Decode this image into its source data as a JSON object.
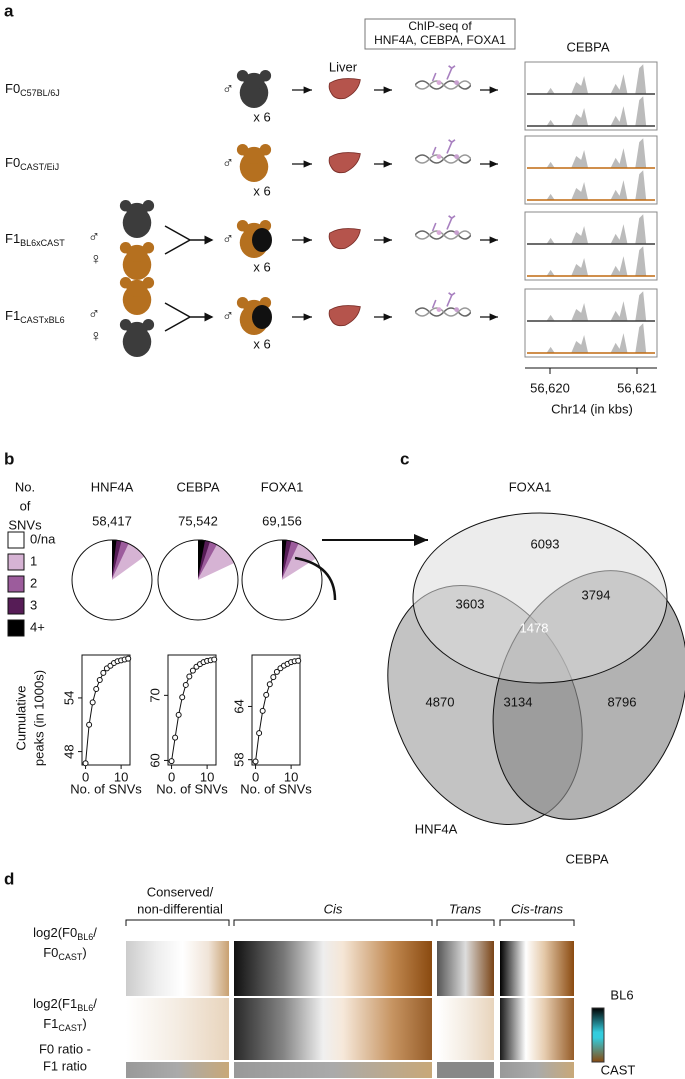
{
  "panel_a": {
    "label": "a",
    "header_box": [
      "ChIP-seq of",
      "HNF4A, CEBPA, FOXA1"
    ],
    "organ": "Liver",
    "track_title": "CEBPA",
    "male": "♂",
    "female": "♀",
    "count": "x 6",
    "rows": [
      {
        "name": "F0",
        "sub": "C57BL/6J"
      },
      {
        "name": "F0",
        "sub": "CAST/EiJ"
      },
      {
        "name": "F1",
        "sub": "BL6xCAST"
      },
      {
        "name": "F1",
        "sub": "CASTxBL6"
      }
    ],
    "axis_ticks": [
      "56,620",
      "56,621"
    ],
    "axis_label": "Chr14 (in kbs)"
  },
  "panel_b": {
    "label": "b",
    "legend_title": [
      "No.",
      "of",
      "SNVs"
    ],
    "legend": [
      "0/na",
      "1",
      "2",
      "3",
      "4+"
    ],
    "colors": [
      "#ffffff",
      "#d6b3d4",
      "#9c5c9c",
      "#561c56",
      "#000000"
    ],
    "ylabel": [
      "Cumulative",
      "peaks (in 1000s)"
    ],
    "xlabel": "No. of SNVs",
    "x": [
      0,
      1,
      2,
      3,
      4,
      5,
      6,
      7,
      8,
      9,
      10,
      11,
      12
    ],
    "xlim": [
      -1,
      12.5
    ],
    "xticks": [
      0,
      10
    ],
    "factors": [
      {
        "name": "HNF4A",
        "peaks": "58,417",
        "pie": [
          85,
          8,
          3,
          2,
          2
        ],
        "ylim": [
          46.5,
          58.8
        ],
        "yticks": [
          48,
          54
        ],
        "values": [
          46.7,
          51,
          53.5,
          55,
          56,
          56.8,
          57.3,
          57.6,
          57.9,
          58.1,
          58.2,
          58.3,
          58.4
        ]
      },
      {
        "name": "CEBPA",
        "peaks": "75,542",
        "pie": [
          82,
          10,
          3,
          2,
          3
        ],
        "ylim": [
          59.3,
          76.2
        ],
        "yticks": [
          60,
          70
        ],
        "values": [
          59.9,
          63.5,
          67,
          69.7,
          71.6,
          72.9,
          73.8,
          74.4,
          74.8,
          75.1,
          75.3,
          75.4,
          75.5
        ]
      },
      {
        "name": "FOXA1",
        "peaks": "69,156",
        "pie": [
          84,
          9,
          3,
          2,
          2
        ],
        "ylim": [
          57.4,
          69.8
        ],
        "yticks": [
          58,
          64
        ],
        "values": [
          57.8,
          61,
          63.5,
          65.3,
          66.5,
          67.3,
          67.9,
          68.3,
          68.6,
          68.8,
          69,
          69.1,
          69.15
        ]
      }
    ]
  },
  "panel_c": {
    "label": "c",
    "sets": [
      "FOXA1",
      "HNF4A",
      "CEBPA"
    ],
    "regions": {
      "foxa1_only": "6093",
      "hnf4a_foxa1": "3603",
      "cebpa_foxa1": "3794",
      "all": "1478",
      "hnf4a_only": "4870",
      "hnf4a_cebpa": "3134",
      "cebpa_only": "8796"
    }
  },
  "panel_d": {
    "label": "d",
    "groups": [
      [
        "Conserved/",
        "non-differential"
      ],
      "Cis",
      "Trans",
      "Cis-trans"
    ],
    "row1": [
      "log2(F0",
      "BL6",
      "/",
      "F0",
      "CAST",
      ")"
    ],
    "row2": [
      "log2(F1",
      "BL6",
      "/",
      "F1",
      "CAST",
      ")"
    ],
    "row3": [
      "F0 ratio -",
      "F1 ratio"
    ],
    "scale": [
      "BL6",
      "CAST"
    ]
  }
}
